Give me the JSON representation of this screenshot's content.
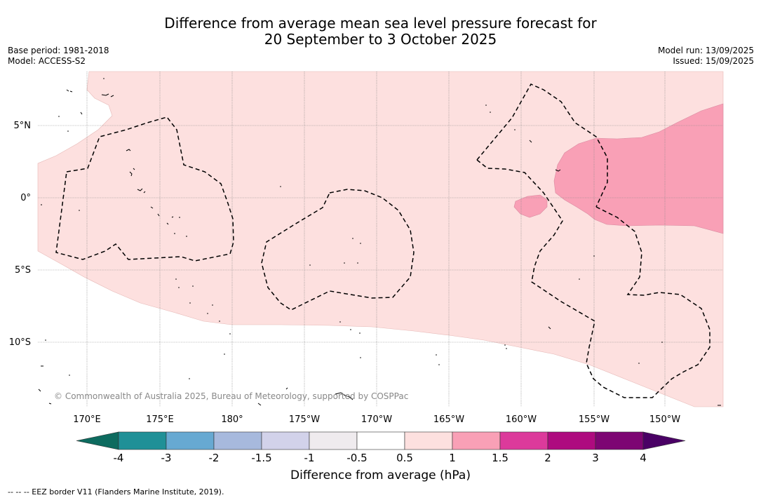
{
  "header": {
    "title_line1": "Difference from average mean sea level pressure forecast for",
    "title_line2": "20 September to 3 October 2025",
    "base_period": "Base period: 1981-2018",
    "model": "Model: ACCESS-S2",
    "model_run": "Model run: 13/09/2025",
    "issued": "Issued: 15/09/2025"
  },
  "map": {
    "lat_labels": [
      "5°N",
      "0°",
      "5°S",
      "10°S"
    ],
    "lon_labels": [
      "170°E",
      "175°E",
      "180°",
      "175°W",
      "170°W",
      "165°W",
      "160°W",
      "155°W",
      "150°W"
    ],
    "copyright": "© Commonwealth of Australia 2025, Bureau of Meteorology, supported by COSPPac",
    "colors": {
      "band_0_5_to_1": "#fde0df",
      "band_1_to_1_5": "#f9a0b6",
      "eez_line": "#000000",
      "grid": "#888888"
    }
  },
  "colorbar": {
    "ticks": [
      "-4",
      "-3",
      "-2",
      "-1.5",
      "-1",
      "-0.5",
      "0.5",
      "1",
      "1.5",
      "2",
      "3",
      "4"
    ],
    "colors": [
      "#1f9097",
      "#67a9d2",
      "#a7b9dd",
      "#d2d2ea",
      "#efebee",
      "#ffffff",
      "#fde0df",
      "#f9a0b6",
      "#dc3a9b",
      "#ae0b7f",
      "#7d0673"
    ],
    "under_color": "#0d6b5f",
    "over_color": "#4a0165",
    "label": "Difference from average (hPa)"
  },
  "footnote": "--  --  -- EEZ border V11 (Flanders Marine Institute, 2019)."
}
